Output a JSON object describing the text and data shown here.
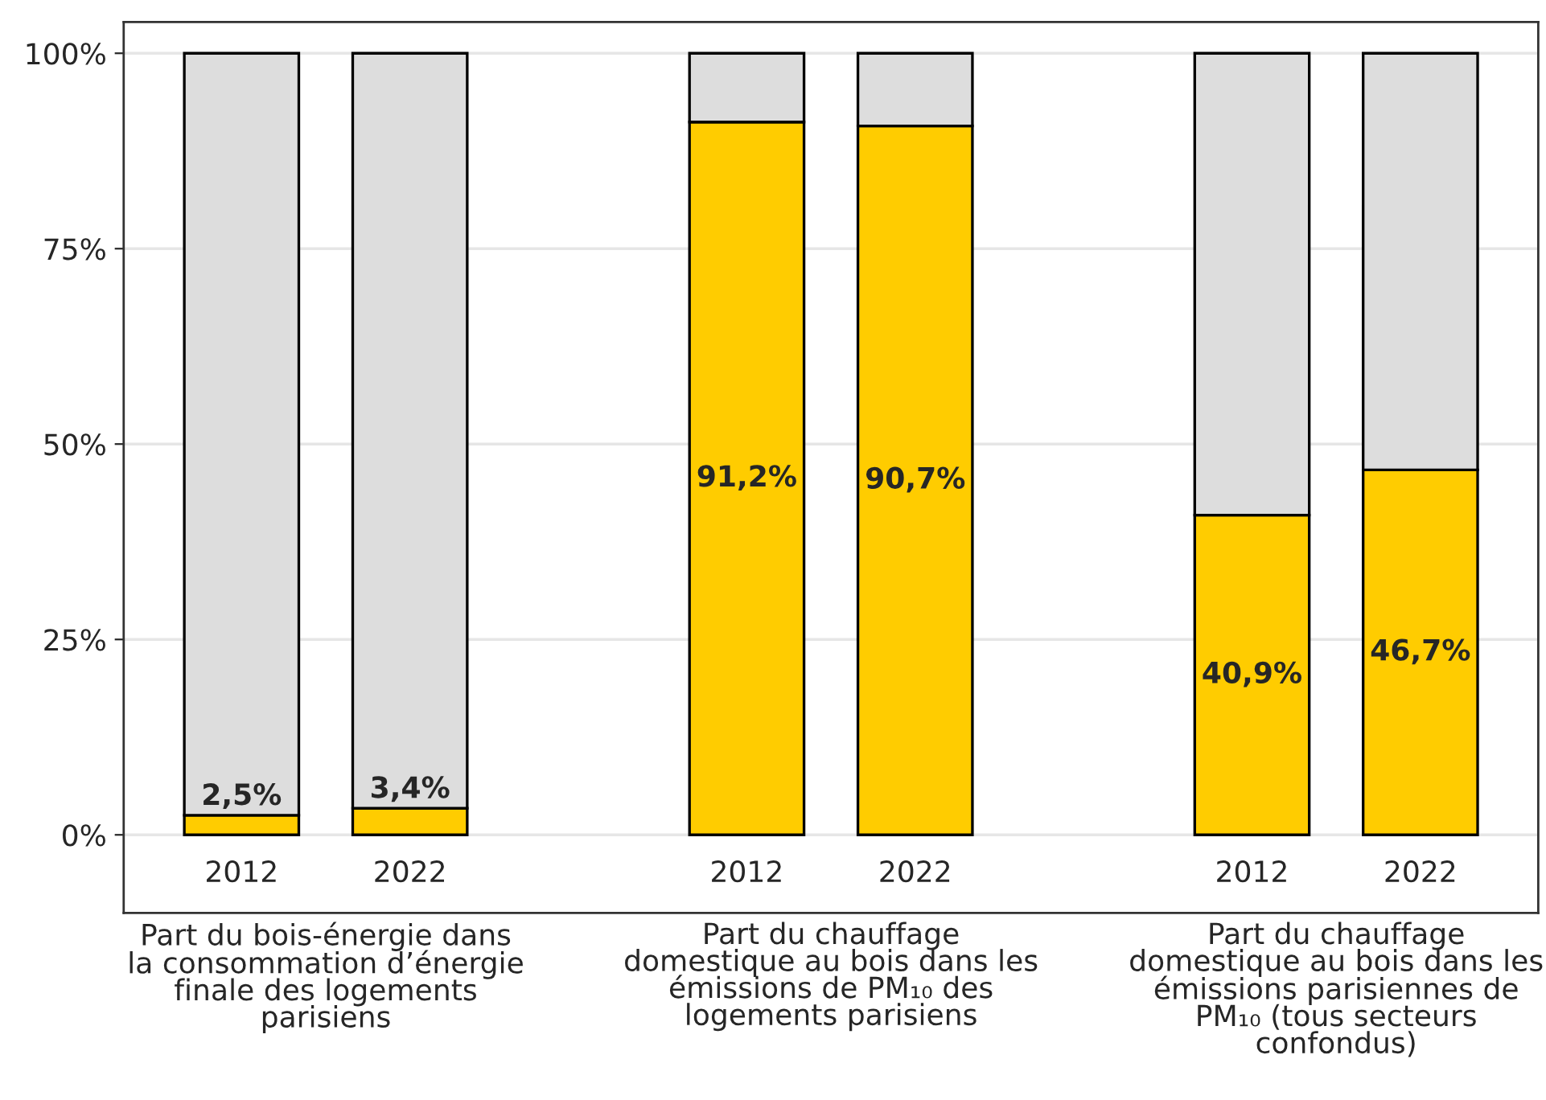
{
  "chart_data": {
    "type": "bar",
    "stacked": true,
    "categories": [
      "2012",
      "2022",
      null,
      "2012",
      "2022",
      null,
      "2012",
      "2022"
    ],
    "series": [
      {
        "color": "#ffcc00",
        "values": [
          2.5,
          3.4,
          null,
          91.2,
          90.7,
          null,
          40.9,
          46.7
        ],
        "value_labels": [
          "2,5%",
          "3,4%",
          null,
          "91,2%",
          "90,7%",
          null,
          "40,9%",
          "46,7%"
        ]
      },
      {
        "color": "#dddddd",
        "values": [
          97.5,
          96.6,
          null,
          8.8,
          9.3,
          null,
          59.1,
          53.3
        ]
      }
    ],
    "ylim": [
      -10,
      104
    ],
    "yticks": [
      {
        "value": 0,
        "label": "0%"
      },
      {
        "value": 25,
        "label": "25%"
      },
      {
        "value": 50,
        "label": "50%"
      },
      {
        "value": 75,
        "label": "75%"
      },
      {
        "value": 100,
        "label": "100%"
      }
    ],
    "grid": "y",
    "annotations": [
      "Part du bois-énergie dans\nla consommation d’énergie\nfinale des logements\nparisiens",
      "Part du chauffage\ndomestique au bois dans les\némissions de PM₁₀ des\nlogements parisiens",
      "Part du chauffage\ndomestique au bois dans les\némissions parisiennes de\nPM₁₀ (tous secteurs\nconfondus)"
    ]
  }
}
